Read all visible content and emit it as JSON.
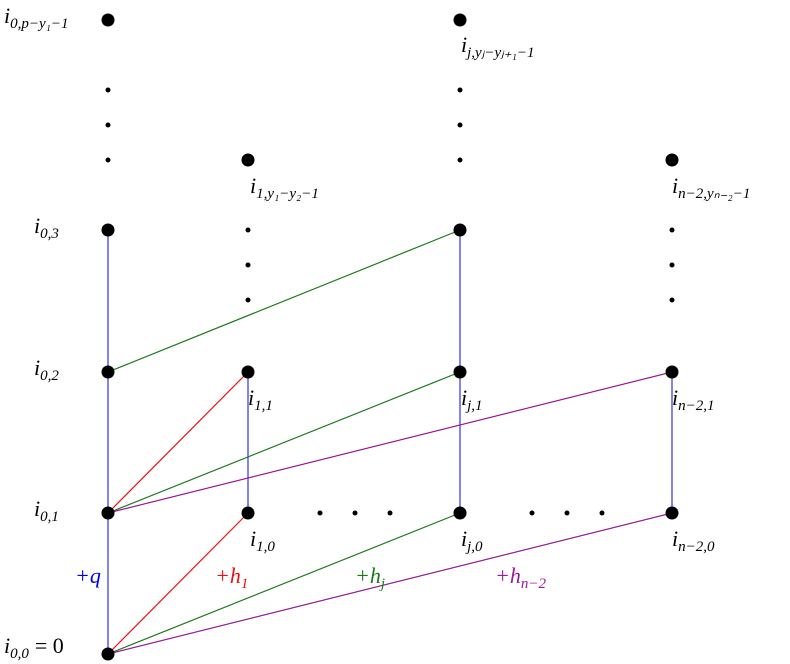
{
  "nodes": [
    {
      "base": "i",
      "sub": "0,p−y₁−1"
    },
    {
      "base": "i",
      "sub": "0,3"
    },
    {
      "base": "i",
      "sub": "0,2"
    },
    {
      "base": "i",
      "sub": "0,1"
    },
    {
      "base": "i",
      "sub": "0,0",
      "after": "= 0"
    },
    {
      "base": "i",
      "sub": "1,y₁−y₂−1"
    },
    {
      "base": "i",
      "sub": "1,1"
    },
    {
      "base": "i",
      "sub": "1,0"
    },
    {
      "base": "i",
      "sub": "j,yⱼ−yⱼ₊₁−1"
    },
    {
      "base": "i",
      "sub": "j,1"
    },
    {
      "base": "i",
      "sub": "j,0"
    },
    {
      "base": "i",
      "sub": "n−2,yₙ₋₂−1"
    },
    {
      "base": "i",
      "sub": "n−2,1"
    },
    {
      "base": "i",
      "sub": "n−2,0"
    }
  ],
  "edge_labels": [
    {
      "base": "+q",
      "color": "#0000ee"
    },
    {
      "base": "+h",
      "sub": "1",
      "color": "#ee1111"
    },
    {
      "base": "+h",
      "sub": "j",
      "color": "#1a7a1a"
    },
    {
      "base": "+h",
      "sub": "n−2",
      "color": "#9a1a9a"
    }
  ]
}
